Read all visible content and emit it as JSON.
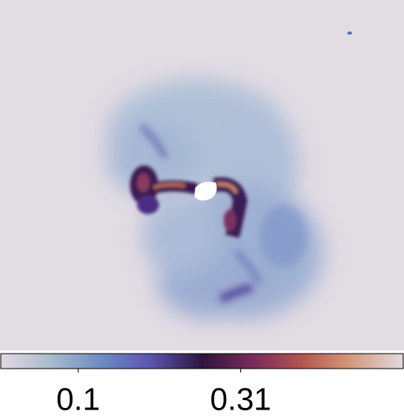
{
  "chart_data": {
    "type": "image",
    "colorbar": {
      "lim": [
        0,
        0.52
      ],
      "ticks": [
        0.1,
        0.31
      ]
    }
  }
}
